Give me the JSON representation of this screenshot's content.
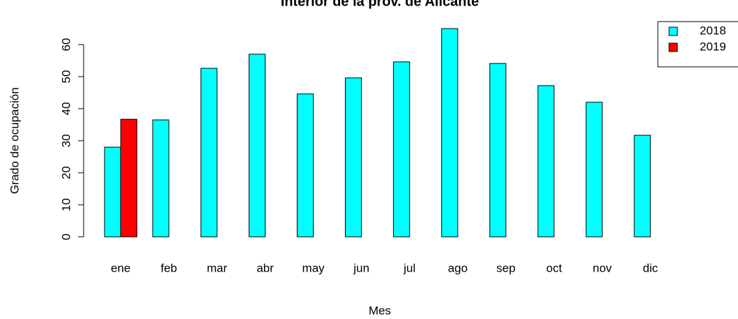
{
  "chart_data": {
    "type": "bar",
    "title": "Interior de la prov. de Alicante",
    "x_label": "Mes",
    "y_label": "Grado de ocupación",
    "categories": [
      "ene",
      "feb",
      "mar",
      "abr",
      "may",
      "jun",
      "jul",
      "ago",
      "sep",
      "oct",
      "nov",
      "dic"
    ],
    "series": [
      {
        "name": "2018",
        "color": "#00ffff",
        "values": [
          28,
          36.5,
          52.6,
          57,
          44.6,
          49.6,
          54.6,
          65,
          54.1,
          47.2,
          42,
          31.7
        ]
      },
      {
        "name": "2019",
        "color": "#ff0000",
        "values": [
          36.7,
          null,
          null,
          null,
          null,
          null,
          null,
          null,
          null,
          null,
          null,
          null
        ]
      }
    ],
    "ylim": [
      0,
      65
    ],
    "yticks": [
      0,
      10,
      20,
      30,
      40,
      50,
      60
    ],
    "legend": "top-right"
  }
}
